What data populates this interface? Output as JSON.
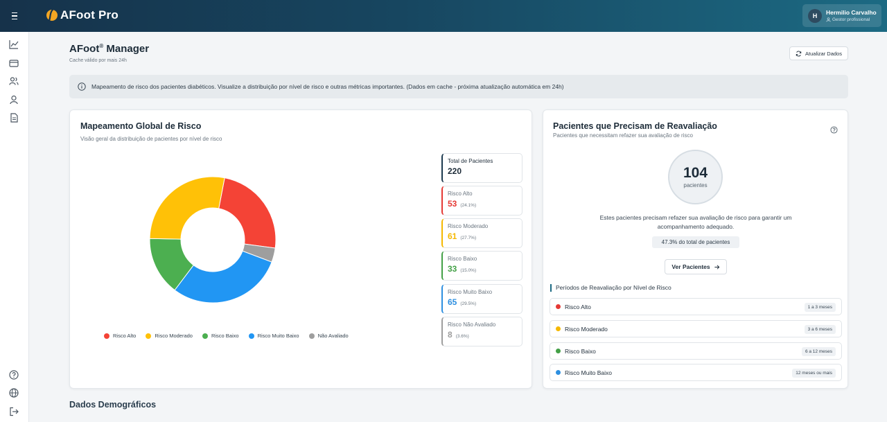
{
  "app": {
    "brand": "AFoot Pro"
  },
  "user": {
    "initial": "H",
    "name": "Hermilio Carvalho",
    "role": "Gestor profissional"
  },
  "sidebar": {
    "items": [
      "chart-line-icon",
      "card-icon",
      "users-icon",
      "user-icon",
      "document-icon"
    ],
    "bottom": [
      "help-icon",
      "globe-icon",
      "logout-icon"
    ]
  },
  "header": {
    "title": "AFoot",
    "title_sup": "®",
    "title_rest": " Manager",
    "subtitle": "Cache válido por mais 24h",
    "refresh_label": "Atualizar Dados"
  },
  "banner": {
    "text": "Mapeamento de risco dos pacientes diabéticos. Visualize a distribuição por nível de risco e outras métricas importantes.  (Dados em cache - próxima atualização automática em 24h)"
  },
  "risk_map": {
    "title": "Mapeamento Global de Risco",
    "subtitle": "Visão geral da distribuição de pacientes por nível de risco",
    "total_label": "Total de Pacientes",
    "total_value": "220",
    "stats": [
      {
        "label": "Risco Alto",
        "value": "53",
        "pct": "(24.1%)",
        "color": "#e53935"
      },
      {
        "label": "Risco Moderado",
        "value": "61",
        "pct": "(27.7%)",
        "color": "#f5b800"
      },
      {
        "label": "Risco Baixo",
        "value": "33",
        "pct": "(15.0%)",
        "color": "#43a047"
      },
      {
        "label": "Risco Muito Baixo",
        "value": "65",
        "pct": "(29.5%)",
        "color": "#2d8fe0"
      },
      {
        "label": "Risco Não Avaliado",
        "value": "8",
        "pct": "(3.6%)",
        "color": "#9e9e9e"
      }
    ],
    "legend": [
      "Risco Alto",
      "Risco Moderado",
      "Risco Baixo",
      "Risco Muito Baixo",
      "Não Avaliado"
    ]
  },
  "chart_data": {
    "type": "pie",
    "categories": [
      "Risco Alto",
      "Não Avaliado",
      "Risco Muito Baixo",
      "Risco Baixo",
      "Risco Moderado"
    ],
    "values": [
      53,
      8,
      65,
      33,
      61
    ],
    "colors": [
      "#f44336",
      "#9e9e9e",
      "#2196f3",
      "#4caf50",
      "#ffc107"
    ],
    "donut": true,
    "legend": "bottom"
  },
  "reevaluation": {
    "title": "Pacientes que Precisam de Reavaliação",
    "subtitle": "Pacientes que necessitam refazer sua avaliação de risco",
    "count": "104",
    "count_label": "pacientes",
    "description": "Estes pacientes precisam refazer sua avaliação de risco para garantir um acompanhamento adequado.",
    "pct_text": "47.3% do total de pacientes",
    "button_label": "Ver Pacientes",
    "periods_title": "Períodos de Reavaliação por Nível de Risco",
    "periods": [
      {
        "label": "Risco Alto",
        "period": "1 a 3 meses",
        "color": "#e53935"
      },
      {
        "label": "Risco Moderado",
        "period": "3 a 6 meses",
        "color": "#f5b800"
      },
      {
        "label": "Risco Baixo",
        "period": "6 a 12 meses",
        "color": "#43a047"
      },
      {
        "label": "Risco Muito Baixo",
        "period": "12 meses ou mais",
        "color": "#2d8fe0"
      }
    ]
  },
  "demographics": {
    "title": "Dados Demográficos"
  }
}
